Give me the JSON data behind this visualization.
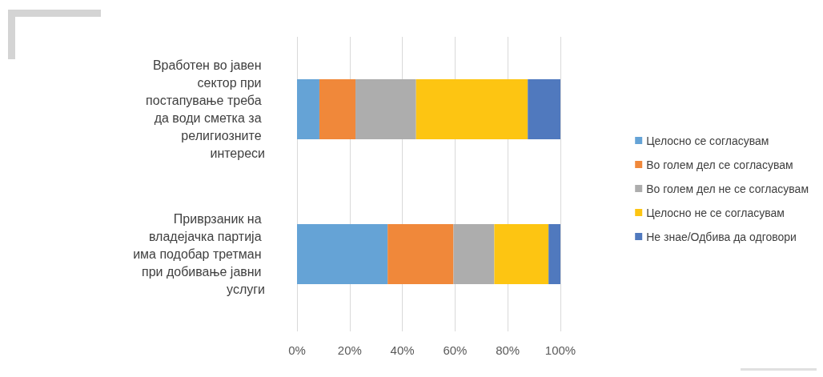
{
  "chart_data": {
    "type": "bar",
    "orientation": "horizontal",
    "stacked": true,
    "categories": [
      "Вработен во јавен сектор при постапување треба да води сметка за религиозните интереси",
      "Приврзаник на владејачка партија има подобар третман при добивање јавни услуги"
    ],
    "series": [
      {
        "name": "Целосно се согласувам",
        "color": "#65a3d6",
        "values": [
          8.5,
          34.4
        ]
      },
      {
        "name": "Во голем дел се согласувам",
        "color": "#f0883a",
        "values": [
          13.7,
          25.0
        ]
      },
      {
        "name": "Во голем дел не се согласувам",
        "color": "#adadad",
        "values": [
          23.0,
          15.5
        ]
      },
      {
        "name": "Целосно не се согласувам",
        "color": "#fdc512",
        "values": [
          42.4,
          20.6
        ]
      },
      {
        "name": "Не знае/Одбива да одговори",
        "color": "#5079be",
        "values": [
          12.4,
          4.5
        ]
      }
    ],
    "xlim": [
      0,
      100
    ],
    "xticks": [
      {
        "value": 0,
        "label": "0%"
      },
      {
        "value": 20,
        "label": "20%"
      },
      {
        "value": 40,
        "label": "40%"
      },
      {
        "value": 60,
        "label": "60%"
      },
      {
        "value": 80,
        "label": "80%"
      },
      {
        "value": 100,
        "label": "100%"
      }
    ],
    "grid": "x",
    "legend": "right"
  }
}
